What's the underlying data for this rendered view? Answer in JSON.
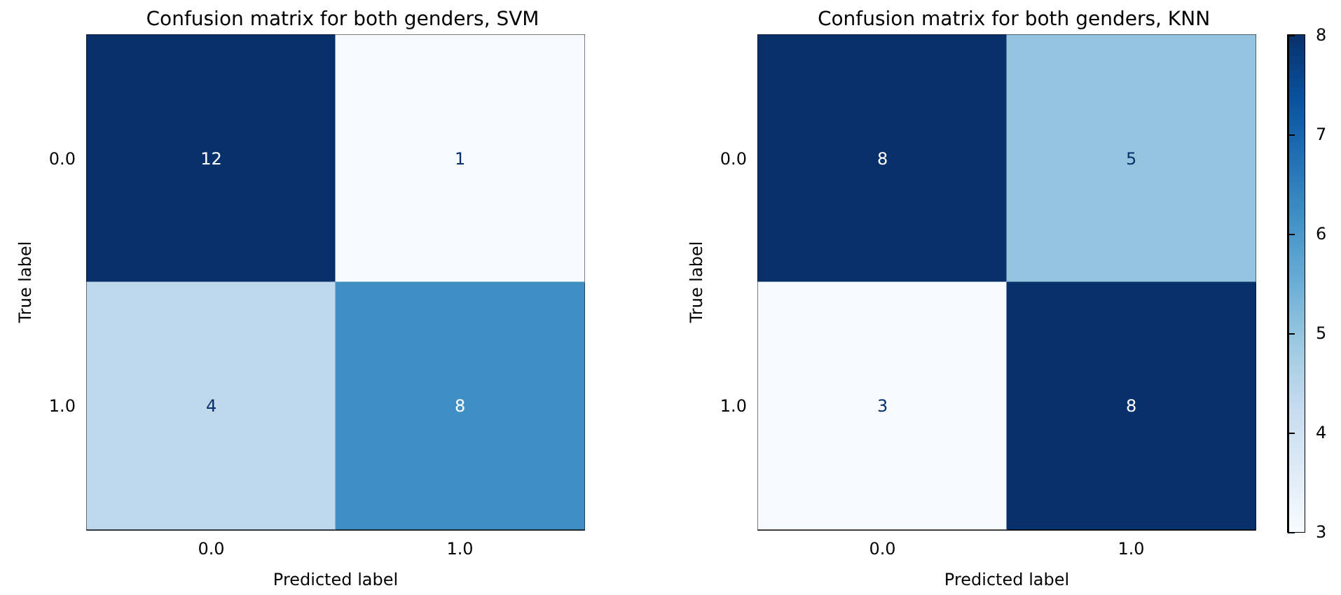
{
  "chart_data": [
    {
      "type": "heatmap",
      "title": "Confusion matrix for both genders, SVM",
      "xlabel": "Predicted label",
      "ylabel": "True label",
      "categories": [
        "0.0",
        "1.0"
      ],
      "y_categories": [
        "0.0",
        "1.0"
      ],
      "cells": [
        [
          12,
          1
        ],
        [
          4,
          8
        ]
      ],
      "data_labels": true
    },
    {
      "type": "heatmap",
      "title": "Confusion matrix for both genders, KNN",
      "xlabel": "Predicted label",
      "ylabel": "True label",
      "categories": [
        "0.0",
        "1.0"
      ],
      "y_categories": [
        "0.0",
        "1.0"
      ],
      "cells": [
        [
          8,
          5
        ],
        [
          3,
          8
        ]
      ],
      "data_labels": true,
      "clim": [
        3,
        8
      ],
      "cticks": [
        3,
        4,
        5,
        6,
        7,
        8
      ]
    }
  ]
}
